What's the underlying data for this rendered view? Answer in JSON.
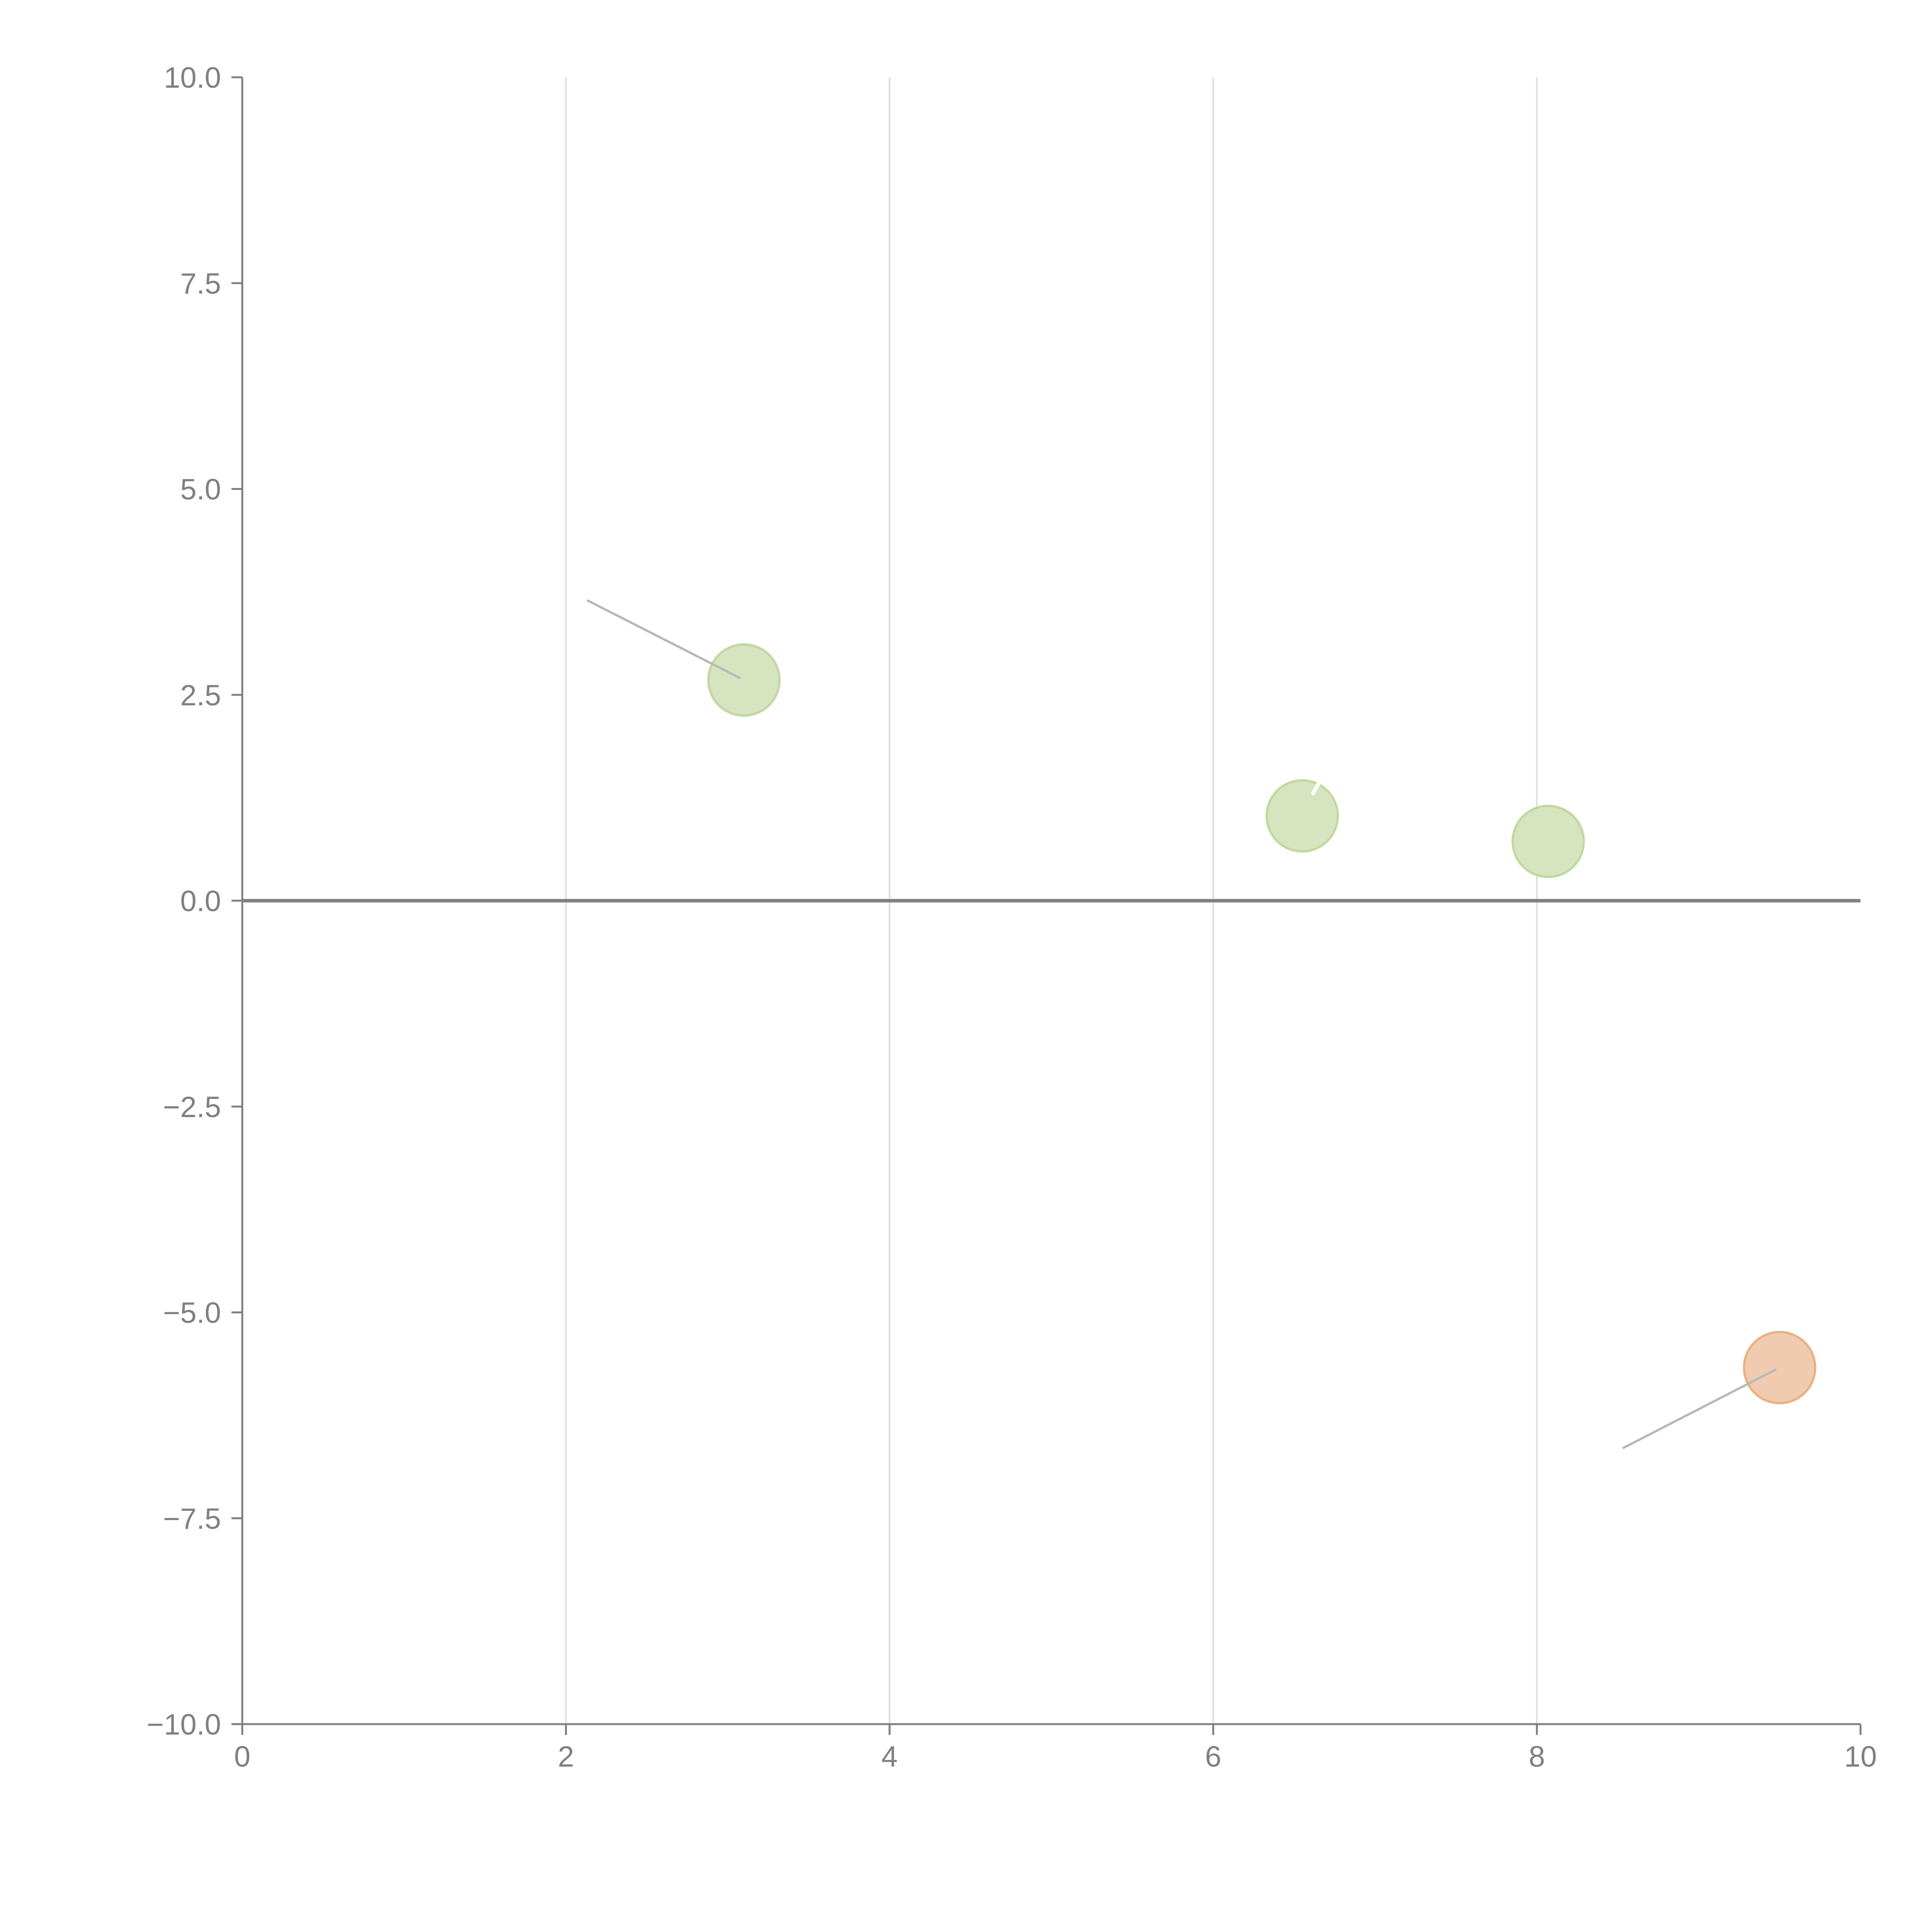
{
  "chart_data": {
    "type": "scatter",
    "title": "",
    "xlabel": "",
    "ylabel": "",
    "xlim": [
      0,
      10
    ],
    "ylim": [
      -10,
      10
    ],
    "x_ticks": [
      0,
      2,
      4,
      6,
      8,
      10
    ],
    "x_tick_labels": [
      "0",
      "2",
      "4",
      "6",
      "8",
      "10"
    ],
    "y_ticks": [
      10,
      7.5,
      5,
      2.5,
      0,
      -2.5,
      -5,
      -7.5,
      -10
    ],
    "y_tick_labels": [
      "10.0",
      "7.5",
      "5.0",
      "2.5",
      "0.0",
      "−2.5",
      "−5.0",
      "−7.5",
      "−10.0"
    ],
    "grid": "vertical",
    "zero_line": 0,
    "points": [
      {
        "name": "point-1",
        "x": 3.1,
        "y": 2.68,
        "color": "#d6e4bf",
        "stroke": "#c2d8a0",
        "leader": {
          "x": 2.13,
          "y": 3.65
        }
      },
      {
        "name": "point-2",
        "x": 6.55,
        "y": 1.03,
        "color": "#d6e4bf",
        "stroke": "#c2d8a0",
        "tick_mark": true
      },
      {
        "name": "point-3",
        "x": 8.07,
        "y": 0.72,
        "color": "#d6e4bf",
        "stroke": "#c2d8a0"
      },
      {
        "name": "point-4",
        "x": 9.5,
        "y": -5.67,
        "color": "#f0cbb0",
        "stroke": "#e9b184",
        "leader": {
          "x": 8.53,
          "y": -6.65
        }
      }
    ],
    "colors": {
      "axis": "#808080",
      "grid": "#dddddd",
      "zero_line": "#808080",
      "leader": "#b8b8b8"
    }
  }
}
